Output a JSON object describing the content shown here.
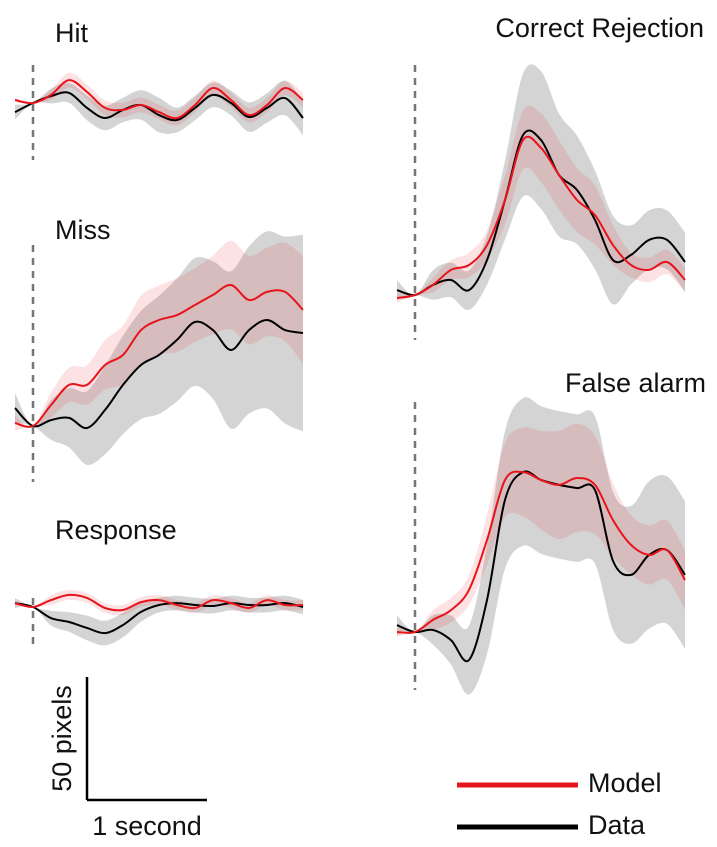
{
  "chart_data": [
    {
      "type": "line",
      "title": "Hit",
      "x": [
        -0.15,
        0,
        0.15,
        0.3,
        0.45,
        0.6,
        0.75,
        0.9,
        1.05,
        1.2,
        1.35,
        1.5,
        1.65,
        1.8,
        1.95,
        2.1,
        2.25
      ],
      "series": [
        {
          "color": "#e8141b",
          "values": [
            1.2,
            0,
            3.3,
            9.3,
            4.5,
            -2,
            -2.8,
            -0.8,
            -3.7,
            -6.1,
            -0.8,
            6.1,
            1.2,
            -4.9,
            -0.8,
            6.1,
            1.2
          ],
          "error": [
            1,
            0,
            2,
            3,
            3,
            3,
            3,
            3,
            3,
            3,
            3,
            3,
            3,
            3,
            3,
            3,
            3
          ]
        },
        {
          "color": "#000000",
          "values": [
            -3.7,
            0,
            2.8,
            4.1,
            -2,
            -6.1,
            -2.8,
            -0.8,
            -4.9,
            -6.9,
            -2,
            3.3,
            0,
            -5.7,
            -2,
            2,
            -6.1
          ],
          "error": [
            3,
            0,
            3,
            4,
            5,
            5,
            5,
            6,
            7,
            5,
            5,
            5,
            5,
            6,
            6,
            7,
            7
          ]
        }
      ]
    },
    {
      "type": "line",
      "title": "Miss",
      "x": [
        -0.15,
        0,
        0.15,
        0.3,
        0.45,
        0.6,
        0.75,
        0.9,
        1.05,
        1.2,
        1.35,
        1.5,
        1.65,
        1.8,
        1.95,
        2.1,
        2.25
      ],
      "series": [
        {
          "color": "#e8141b",
          "values": [
            1.2,
            0,
            8.5,
            16.7,
            16.7,
            24.8,
            28.9,
            39,
            43.1,
            45.1,
            49.2,
            53.3,
            57.3,
            51.2,
            54.5,
            54.5,
            47.2
          ],
          "error": [
            3,
            0,
            5,
            7,
            8,
            10,
            12,
            14,
            14,
            15,
            15,
            16,
            18,
            18,
            18,
            20,
            22
          ]
        },
        {
          "color": "#000000",
          "values": [
            7.3,
            0,
            2.4,
            3.3,
            -0.8,
            6.5,
            16.7,
            24.8,
            28.9,
            35,
            42.3,
            39,
            30.9,
            39,
            43.1,
            39,
            37.8
          ],
          "error": [
            6,
            0,
            8,
            12,
            15,
            18,
            20,
            22,
            24,
            25,
            26,
            28,
            32,
            34,
            36,
            38,
            40
          ]
        }
      ]
    },
    {
      "type": "line",
      "title": "Response",
      "x": [
        -0.15,
        0,
        0.15,
        0.3,
        0.45,
        0.6,
        0.75,
        0.9,
        1.05,
        1.2,
        1.35,
        1.5,
        1.65,
        1.8,
        1.95,
        2.1,
        2.25
      ],
      "series": [
        {
          "color": "#e8141b",
          "values": [
            1.6,
            0,
            2.8,
            4.9,
            3.7,
            -0.4,
            -1.2,
            2,
            2.8,
            0.8,
            -0.4,
            2.8,
            1.6,
            -0.4,
            2.8,
            0.8,
            0.8
          ],
          "error": [
            1,
            0,
            2,
            2,
            2,
            2,
            2,
            2,
            2,
            2,
            2,
            2,
            2,
            2,
            2,
            2,
            2
          ]
        },
        {
          "color": "#000000",
          "values": [
            1.6,
            0,
            -4.5,
            -6.1,
            -8.5,
            -10.6,
            -7.3,
            -2,
            0.8,
            1.6,
            0.8,
            0.4,
            1.6,
            0.8,
            0.8,
            1.6,
            0
          ],
          "error": [
            2,
            0,
            3,
            4,
            5,
            5,
            5,
            4,
            3,
            3,
            3,
            3,
            3,
            3,
            3,
            3,
            3
          ]
        }
      ]
    },
    {
      "type": "line",
      "title": "Correct Rejection",
      "x": [
        -0.15,
        0,
        0.15,
        0.3,
        0.45,
        0.6,
        0.75,
        0.9,
        1.05,
        1.2,
        1.35,
        1.5,
        1.65,
        1.8,
        1.95,
        2.1,
        2.25
      ],
      "series": [
        {
          "color": "#e8141b",
          "values": [
            -1.2,
            0,
            4.1,
            10.2,
            12.2,
            20.3,
            38.6,
            63,
            59.8,
            48.8,
            38.6,
            32.5,
            20.3,
            12.2,
            10.2,
            13.4,
            6.1
          ],
          "error": [
            2,
            0,
            3,
            4,
            5,
            6,
            10,
            12,
            14,
            14,
            13,
            12,
            8,
            5,
            5,
            5,
            5
          ]
        },
        {
          "color": "#000000",
          "values": [
            2,
            0,
            4.1,
            6.1,
            2,
            14.2,
            38.6,
            65,
            63,
            48.8,
            42.7,
            30.5,
            14.2,
            16.3,
            22.4,
            22.4,
            13.4
          ],
          "error": [
            4,
            0,
            6,
            7,
            8,
            10,
            16,
            25,
            28,
            25,
            22,
            20,
            18,
            12,
            12,
            12,
            12
          ]
        }
      ]
    },
    {
      "type": "line",
      "title": "False alarm",
      "x": [
        -0.15,
        0,
        0.15,
        0.3,
        0.45,
        0.6,
        0.75,
        0.9,
        1.05,
        1.2,
        1.35,
        1.5,
        1.65,
        1.8,
        1.95,
        2.1,
        2.25
      ],
      "series": [
        {
          "color": "#e8141b",
          "values": [
            0,
            0,
            4.9,
            8.9,
            17.1,
            37.4,
            61.8,
            65,
            61.8,
            59.8,
            62.6,
            59.8,
            45.5,
            35.4,
            31.3,
            33.3,
            21.1
          ],
          "error": [
            2,
            0,
            4,
            5,
            6,
            10,
            15,
            18,
            20,
            22,
            22,
            20,
            15,
            12,
            12,
            12,
            12
          ]
        },
        {
          "color": "#000000",
          "values": [
            2.8,
            0,
            0.8,
            -3.3,
            -11.4,
            13,
            53.7,
            65,
            61.8,
            59.8,
            58.5,
            57.7,
            28.9,
            23.2,
            31.3,
            33.3,
            23.2
          ],
          "error": [
            4,
            0,
            6,
            10,
            14,
            22,
            28,
            30,
            30,
            30,
            30,
            30,
            28,
            28,
            30,
            30,
            30
          ]
        }
      ]
    }
  ],
  "legend": [
    {
      "name": "Model",
      "color": "#e8141b"
    },
    {
      "name": "Data",
      "color": "#000000"
    }
  ],
  "scale_bar": {
    "x_length": 1,
    "x_label": "1 second",
    "y_length": 50,
    "y_label": "50 pixels"
  }
}
